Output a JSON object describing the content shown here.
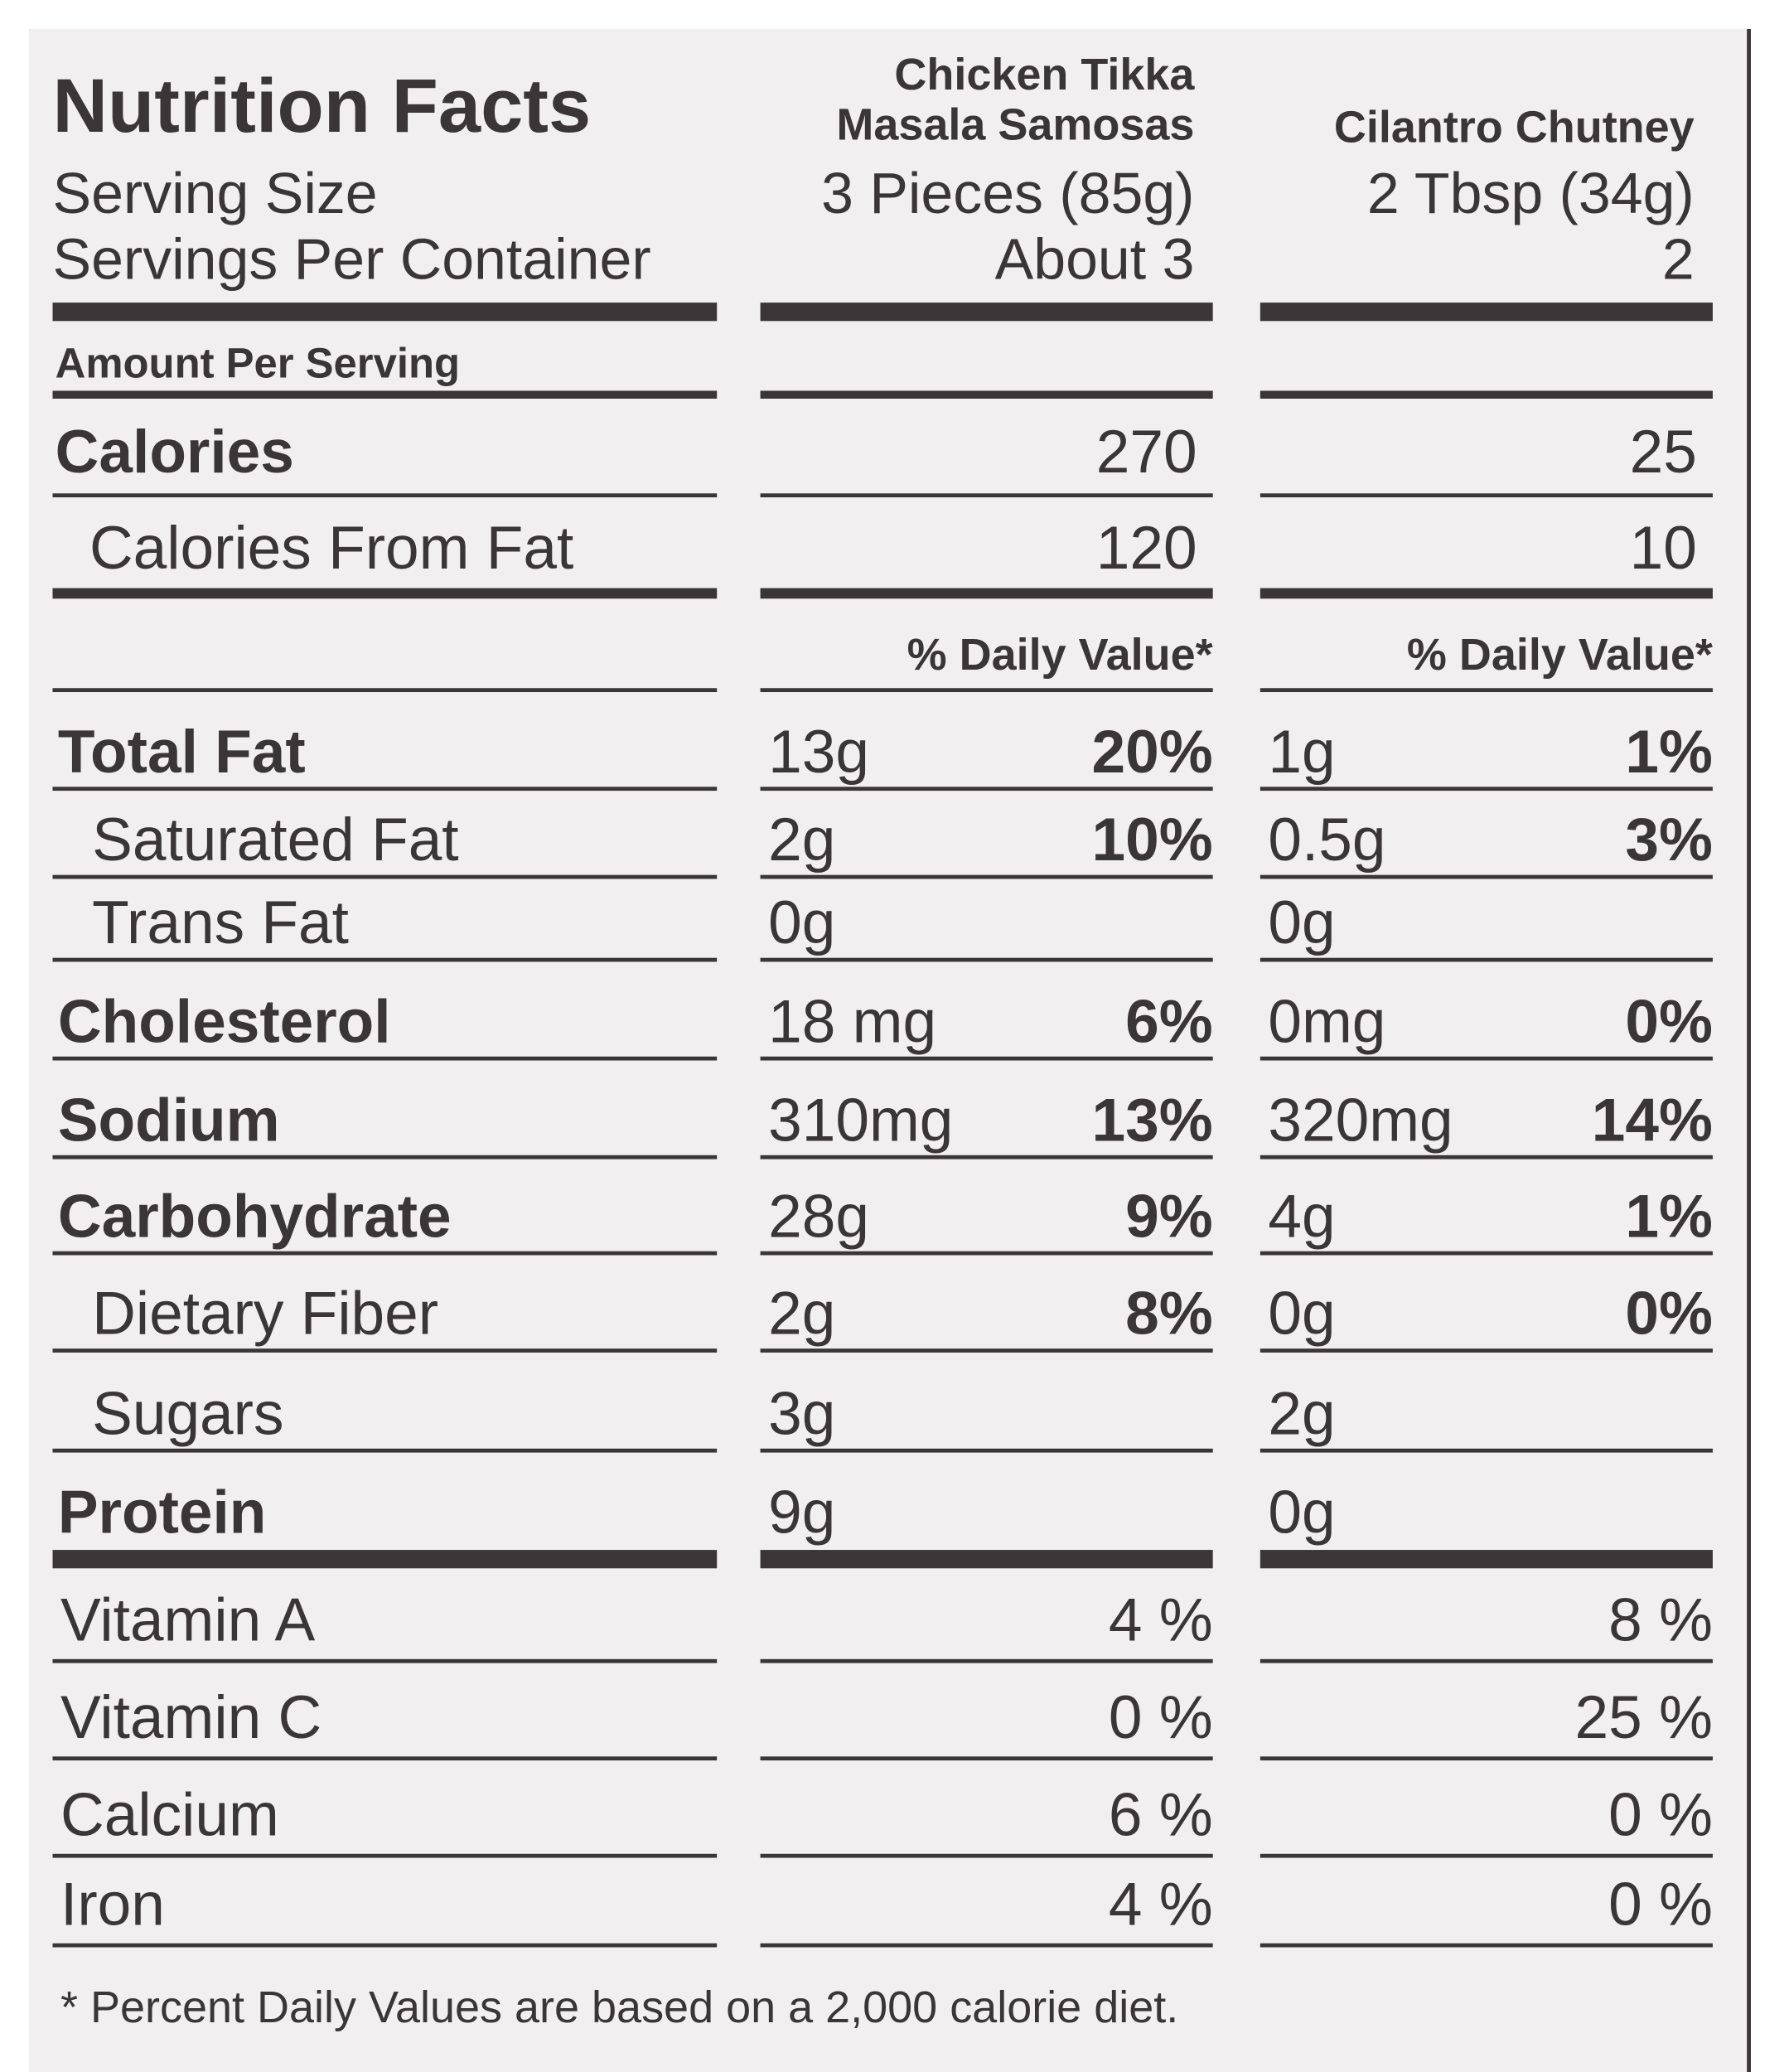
{
  "title": "Nutrition Facts",
  "columns": [
    "Chicken Tikka Masala Samosas",
    "Cilantro Chutney"
  ],
  "serving": [
    {
      "label": "Serving Size",
      "values": [
        "3 Pieces (85g)",
        "2 Tbsp (34g)"
      ]
    },
    {
      "label": "Servings Per Container",
      "values": [
        "About 3",
        "2"
      ]
    }
  ],
  "amount_per_serving": "Amount Per Serving",
  "calories": [
    {
      "label": "Calories",
      "bold": true,
      "values": [
        270,
        25
      ]
    },
    {
      "label": "Calories From Fat",
      "bold": false,
      "values": [
        120,
        10
      ]
    }
  ],
  "daily_value_header": [
    "% Daily Value*",
    "% Daily Value*"
  ],
  "nutrients": [
    {
      "label": "Total Fat",
      "bold": true,
      "amounts": [
        "13g",
        "1g"
      ],
      "dv": [
        "20%",
        "1%"
      ]
    },
    {
      "label": "Saturated Fat",
      "bold": false,
      "amounts": [
        "2g",
        "0.5g"
      ],
      "dv": [
        "10%",
        "3%"
      ]
    },
    {
      "label": "Trans Fat",
      "bold": false,
      "amounts": [
        "0g",
        "0g"
      ],
      "dv": [
        null,
        null
      ]
    },
    {
      "label": "Cholesterol",
      "bold": true,
      "amounts": [
        "18 mg",
        "0mg"
      ],
      "dv": [
        "6%",
        "0%"
      ]
    },
    {
      "label": "Sodium",
      "bold": true,
      "amounts": [
        "310mg",
        "320mg"
      ],
      "dv": [
        "13%",
        "14%"
      ]
    },
    {
      "label": "Carbohydrate",
      "bold": true,
      "amounts": [
        "28g",
        "4g"
      ],
      "dv": [
        "9%",
        "1%"
      ]
    },
    {
      "label": "Dietary Fiber",
      "bold": false,
      "amounts": [
        "2g",
        "0g"
      ],
      "dv": [
        "8%",
        "0%"
      ]
    },
    {
      "label": "Sugars",
      "bold": false,
      "amounts": [
        "3g",
        "2g"
      ],
      "dv": [
        null,
        null
      ]
    },
    {
      "label": "Protein",
      "bold": true,
      "amounts": [
        "9g",
        "0g"
      ],
      "dv": [
        null,
        null
      ]
    }
  ],
  "vitamins": [
    {
      "label": "Vitamin A",
      "values": [
        "4 %",
        "8 %"
      ]
    },
    {
      "label": "Vitamin C",
      "values": [
        "0 %",
        "25 %"
      ]
    },
    {
      "label": "Calcium",
      "values": [
        "6 %",
        "0 %"
      ]
    },
    {
      "label": "Iron",
      "values": [
        "4 %",
        "0 %"
      ]
    }
  ],
  "footnote": "* Percent Daily Values are based on a 2,000 calorie diet."
}
